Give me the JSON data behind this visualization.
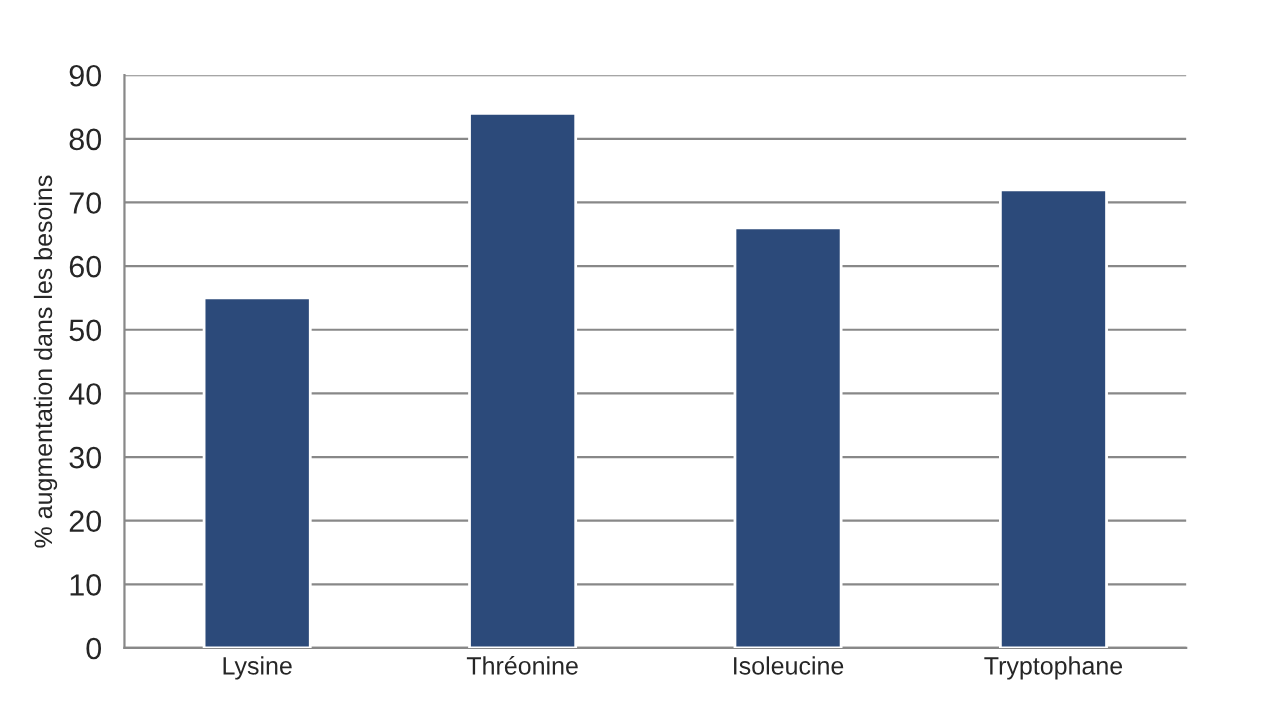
{
  "chart_data": {
    "type": "bar",
    "ylabel": "% augmentation dans les besoins",
    "categories": [
      "Lysine",
      "Thréonine",
      "Isoleucine",
      "Tryptophane"
    ],
    "values": [
      55,
      84,
      66,
      72
    ],
    "color": "#2c4a7a",
    "ylim": [
      0,
      90
    ],
    "yticks": [
      0,
      10,
      20,
      30,
      40,
      50,
      60,
      70,
      80,
      90
    ],
    "grid": "y",
    "legend": false
  }
}
